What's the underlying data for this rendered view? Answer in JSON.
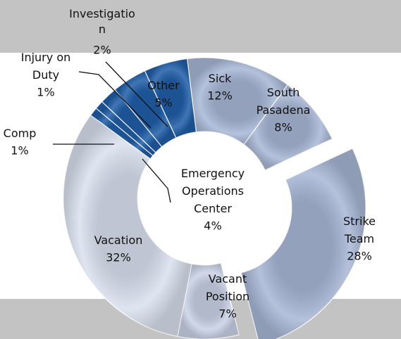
{
  "chart_data": {
    "type": "donut",
    "categories": [
      "Sick",
      "South Pasadena",
      "Strike Team",
      "Vacant Position",
      "Vacation",
      "Comp",
      "Injury on Duty",
      "Investigation",
      "Emergency Operations Center",
      "Other"
    ],
    "values": [
      12,
      8,
      28,
      7,
      32,
      1,
      1,
      2,
      4,
      5
    ],
    "value_labels": [
      "12%",
      "8%",
      "28%",
      "7%",
      "32%",
      "1%",
      "1%",
      "2%",
      "4%",
      "5%"
    ],
    "colors": [
      "#a8b7d6",
      "#a8b7d6",
      "#a8b7d6",
      "#c9d2e6",
      "#d9e0ee",
      "#1f5ea8",
      "#1f5ea8",
      "#1f5ea8",
      "#1f5ea8",
      "#1f5ea8"
    ],
    "exploded": "Strike Team"
  }
}
